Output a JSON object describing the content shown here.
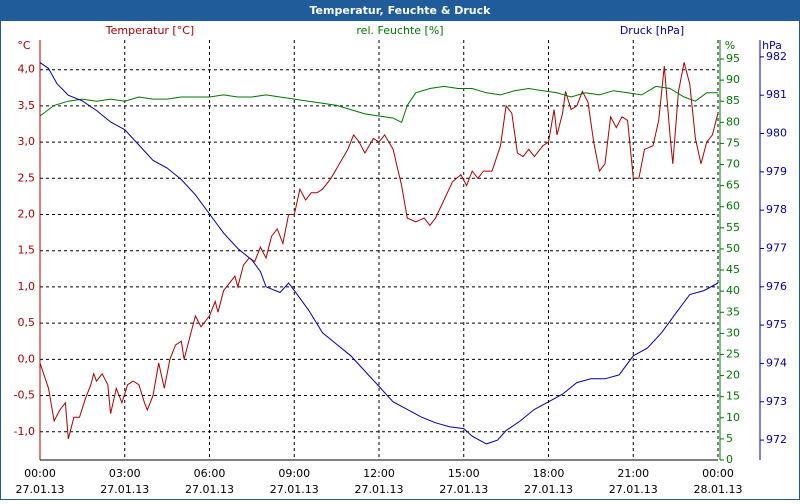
{
  "chart_data": {
    "type": "line",
    "title": "Temperatur, Feuchte & Druck",
    "xlim": [
      0,
      24
    ],
    "xticks": [
      {
        "value": 0,
        "label": "00:00"
      },
      {
        "value": 3,
        "label": "03:00"
      },
      {
        "value": 6,
        "label": "06:00"
      },
      {
        "value": 9,
        "label": "09:00"
      },
      {
        "value": 12,
        "label": "12:00"
      },
      {
        "value": 15,
        "label": "15:00"
      },
      {
        "value": 18,
        "label": "18:00"
      },
      {
        "value": 21,
        "label": "21:00"
      },
      {
        "value": 24,
        "label": "00:00"
      }
    ],
    "xtick_dates": [
      "27.01.13",
      "27.01.13",
      "27.01.13",
      "27.01.13",
      "27.01.13",
      "27.01.13",
      "27.01.13",
      "27.01.13",
      "28.01.13"
    ],
    "y_unit": "°C",
    "y2_unit": "%",
    "y3_unit": "hPa",
    "ylim": [
      -1.39,
      4.41
    ],
    "yticks": [
      {
        "value": -1.0,
        "label": "-1,0"
      },
      {
        "value": -0.5,
        "label": "-0,5"
      },
      {
        "value": 0,
        "label": "0,0"
      },
      {
        "value": 0.5,
        "label": "0,5"
      },
      {
        "value": 1.0,
        "label": "1,0"
      },
      {
        "value": 1.5,
        "label": "1,5"
      },
      {
        "value": 2.0,
        "label": "2,0"
      },
      {
        "value": 2.5,
        "label": "2,5"
      },
      {
        "value": 3.0,
        "label": "3,0"
      },
      {
        "value": 3.5,
        "label": "3,5"
      },
      {
        "value": 4.0,
        "label": "4,0"
      }
    ],
    "y2lim": [
      0,
      99.5
    ],
    "y2ticks": [
      0,
      5,
      10,
      15,
      20,
      25,
      30,
      35,
      40,
      45,
      50,
      55,
      60,
      65,
      70,
      75,
      80,
      85,
      90,
      95
    ],
    "y3lim": [
      971.48,
      982.44
    ],
    "y3ticks": [
      972,
      973,
      974,
      975,
      976,
      977,
      978,
      979,
      980,
      981,
      982
    ],
    "grid": true,
    "series": [
      {
        "name": "Temperatur [°C]",
        "color": "#aa0000",
        "axis": "y",
        "x": [
          0.0,
          0.3,
          0.5,
          0.7,
          0.9,
          1.0,
          1.2,
          1.4,
          1.6,
          1.8,
          1.9,
          2.0,
          2.2,
          2.4,
          2.5,
          2.7,
          2.9,
          3.1,
          3.3,
          3.5,
          3.7,
          3.8,
          4.0,
          4.2,
          4.4,
          4.6,
          4.8,
          5.0,
          5.1,
          5.3,
          5.5,
          5.7,
          5.9,
          6.0,
          6.2,
          6.3,
          6.5,
          6.7,
          6.9,
          7.0,
          7.2,
          7.4,
          7.6,
          7.8,
          8.0,
          8.2,
          8.4,
          8.6,
          8.8,
          9.0,
          9.2,
          9.4,
          9.6,
          9.8,
          10.0,
          10.3,
          10.6,
          10.9,
          11.1,
          11.3,
          11.5,
          11.8,
          12.0,
          12.2,
          12.5,
          12.8,
          13.0,
          13.3,
          13.6,
          13.8,
          14.0,
          14.3,
          14.6,
          14.9,
          15.1,
          15.3,
          15.5,
          15.7,
          16.0,
          16.3,
          16.5,
          16.7,
          16.9,
          17.1,
          17.3,
          17.5,
          17.8,
          18.0,
          18.2,
          18.3,
          18.5,
          18.6,
          18.8,
          19.0,
          19.2,
          19.4,
          19.6,
          19.8,
          20.0,
          20.2,
          20.4,
          20.6,
          20.8,
          21.0,
          21.2,
          21.4,
          21.7,
          21.9,
          22.1,
          22.3,
          22.4,
          22.6,
          22.8,
          23.0,
          23.2,
          23.4,
          23.6,
          23.8,
          24.0
        ],
        "values": [
          -0.05,
          -0.4,
          -0.85,
          -0.7,
          -0.6,
          -1.1,
          -0.8,
          -0.8,
          -0.55,
          -0.35,
          -0.2,
          -0.3,
          -0.2,
          -0.35,
          -0.75,
          -0.4,
          -0.6,
          -0.35,
          -0.3,
          -0.35,
          -0.6,
          -0.7,
          -0.5,
          -0.05,
          -0.4,
          0.0,
          0.2,
          0.25,
          0.0,
          0.3,
          0.6,
          0.45,
          0.55,
          0.6,
          0.8,
          0.65,
          0.95,
          1.05,
          1.15,
          1.0,
          1.3,
          1.4,
          1.35,
          1.55,
          1.4,
          1.7,
          1.8,
          1.6,
          2.0,
          2.0,
          2.35,
          2.2,
          2.3,
          2.3,
          2.35,
          2.5,
          2.7,
          2.9,
          3.1,
          3.0,
          2.85,
          3.05,
          3.0,
          3.1,
          2.9,
          2.4,
          1.95,
          1.9,
          1.95,
          1.85,
          1.95,
          2.2,
          2.45,
          2.55,
          2.4,
          2.6,
          2.5,
          2.6,
          2.6,
          2.95,
          3.5,
          3.4,
          2.85,
          2.8,
          2.9,
          2.8,
          2.95,
          3.0,
          3.45,
          3.1,
          3.4,
          3.7,
          3.45,
          3.5,
          3.7,
          3.55,
          3.0,
          2.6,
          2.7,
          3.35,
          3.2,
          3.35,
          3.3,
          2.5,
          2.5,
          2.9,
          2.95,
          3.3,
          4.05,
          3.1,
          2.7,
          3.7,
          4.1,
          3.8,
          3.05,
          2.7,
          3.0,
          3.1,
          3.4
        ]
      },
      {
        "name": "rel. Feuchte [%]",
        "color": "#007700",
        "axis": "y2",
        "x": [
          0,
          0.5,
          1.0,
          1.5,
          2,
          2.5,
          3,
          3.5,
          4,
          4.5,
          5,
          5.5,
          6,
          6.5,
          7,
          7.5,
          8,
          8.5,
          9,
          9.5,
          10,
          10.5,
          11,
          11.5,
          12,
          12.5,
          12.8,
          13.0,
          13.3,
          13.8,
          14.3,
          14.8,
          15.3,
          15.8,
          16.3,
          16.8,
          17.3,
          17.8,
          18.3,
          18.8,
          19.3,
          19.8,
          20.3,
          20.8,
          21.3,
          21.8,
          22.3,
          22.8,
          23.2,
          23.6,
          24
        ],
        "values": [
          81.5,
          84,
          85,
          85.5,
          85,
          85.5,
          85,
          86,
          85.5,
          85.5,
          86,
          86,
          86,
          86.5,
          86,
          86,
          86.5,
          86,
          85.5,
          85,
          84.5,
          84,
          83,
          82,
          81.5,
          81,
          80,
          84,
          87,
          88,
          88.5,
          88,
          88,
          87,
          86.5,
          87.5,
          88,
          87.5,
          87,
          86,
          87,
          86.5,
          87.5,
          87,
          86.5,
          88.5,
          88,
          86,
          85,
          87,
          87
        ]
      },
      {
        "name": "Druck [hPa]",
        "color": "#0000aa",
        "axis": "y3",
        "x": [
          0,
          0.3,
          0.6,
          1.0,
          1.5,
          2.0,
          2.5,
          3.0,
          3.5,
          4.0,
          4.5,
          5,
          5.5,
          6,
          6.5,
          7,
          7.5,
          7.8,
          8.0,
          8.5,
          8.8,
          9.0,
          9.5,
          10,
          10.5,
          11,
          11.5,
          12,
          12.5,
          13,
          13.5,
          14,
          14.5,
          15,
          15.3,
          15.8,
          16.2,
          16.5,
          17,
          17.5,
          18,
          18.5,
          19,
          19.5,
          20,
          20.5,
          21,
          21.5,
          22,
          22.5,
          23,
          23.5,
          24
        ],
        "values": [
          981.85,
          981.7,
          981.3,
          981.0,
          980.85,
          980.6,
          980.3,
          980.1,
          979.7,
          979.3,
          979.1,
          978.8,
          978.4,
          977.9,
          977.4,
          977.0,
          976.7,
          976.4,
          976.0,
          975.85,
          976.1,
          975.9,
          975.4,
          974.8,
          974.5,
          974.2,
          973.8,
          973.4,
          973.0,
          972.8,
          972.6,
          972.45,
          972.35,
          972.3,
          972.1,
          971.9,
          972.0,
          972.25,
          972.5,
          972.8,
          973.0,
          973.2,
          973.5,
          973.6,
          973.6,
          973.7,
          974.2,
          974.4,
          974.8,
          975.3,
          975.8,
          975.9,
          976.1
        ]
      }
    ]
  }
}
